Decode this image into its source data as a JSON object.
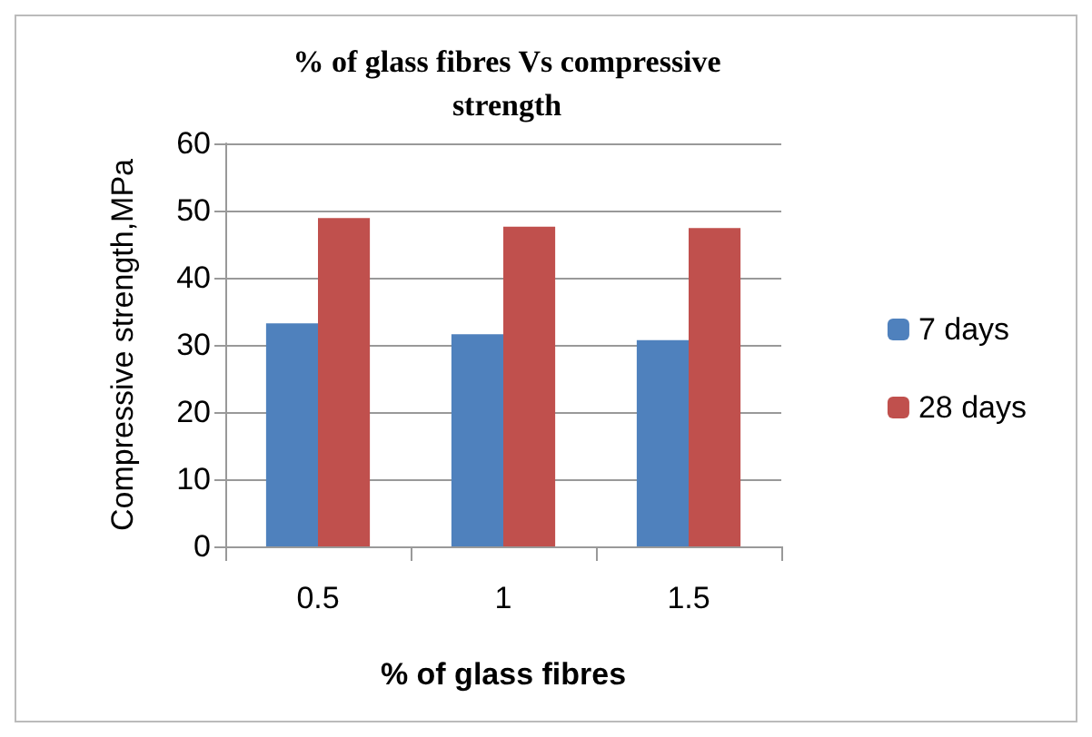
{
  "chart_data": {
    "type": "bar",
    "title": "% of glass fibres Vs compressive\nstrength",
    "xlabel": "% of glass fibres",
    "ylabel": "Compressive strength,MPa",
    "categories": [
      "0.5",
      "1",
      "1.5"
    ],
    "series": [
      {
        "name": "7 days",
        "color": "#4f81bd",
        "values": [
          33.2,
          31.6,
          30.7
        ]
      },
      {
        "name": "28 days",
        "color": "#c0504d",
        "values": [
          48.9,
          47.6,
          47.4
        ]
      }
    ],
    "ylim": [
      0,
      60
    ],
    "yticks": [
      0,
      10,
      20,
      30,
      40,
      50,
      60
    ],
    "grid": "y",
    "legend": "right"
  }
}
